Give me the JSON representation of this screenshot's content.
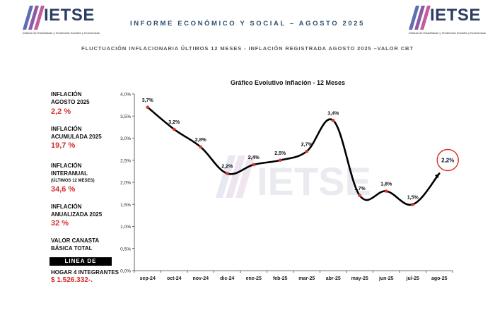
{
  "header": {
    "brand": "IETSE",
    "tagline": "Instituto de Estadísticas y Tendencias Sociales y Económicas",
    "report_title": "INFORME ECONÓMICO Y SOCIAL – AGOSTO 2025",
    "subtitle": "FLUCTUACIÓN INFLACIONARIA ÚLTIMOS 12 MESES - INFLACIÓN REGISTRADA AGOSTO 2025 –VALOR CBT"
  },
  "sidebar": {
    "inflacion_label_1": "INFLACIÓN",
    "inflacion_label_2": "AGOSTO 2025",
    "inflacion_value": "2,2 %",
    "acumulada_label_1": "INFLACIÓN",
    "acumulada_label_2": "ACUMULADA 2025",
    "acumulada_value": "19,7 %",
    "interanual_label_1": "INFLACIÓN",
    "interanual_label_2": "INTERANUAL",
    "interanual_label_3": "(ÚLTIMOS 12 MESES)",
    "interanual_value": "34,6 %",
    "anualizada_label_1": "INFLACIÓN",
    "anualizada_label_2": "ANUALIZADA 2025",
    "anualizada_value": "32 %",
    "canasta_label_1": "VALOR CANASTA",
    "canasta_label_2": "BÁSICA TOTAL",
    "pobreza_label": "LINEA DE POBREZA",
    "hogar_label": "HOGAR 4 INTEGRANTES",
    "hogar_value": "$ 1.526.332-."
  },
  "chart_data": {
    "type": "line",
    "title": "Gráfico Evolutivo Inflación - 12 Meses",
    "categories": [
      "sep-24",
      "oct-24",
      "nov-24",
      "dic-24",
      "ene-25",
      "feb-25",
      "mar-25",
      "abr-25",
      "may-25",
      "jun-25",
      "jul-25",
      "ago-25"
    ],
    "values": [
      3.7,
      3.2,
      2.8,
      2.2,
      2.4,
      2.5,
      2.7,
      3.4,
      1.7,
      1.8,
      1.5,
      2.2
    ],
    "data_labels": [
      "3,7%",
      "3,2%",
      "2,8%",
      "2,2%",
      "2,4%",
      "2,5%",
      "2,7%",
      "3,4%",
      "1,7%",
      "1,8%",
      "1,5%",
      "2,2%"
    ],
    "y_ticks": [
      "0,0%",
      "0,5%",
      "1,0%",
      "1,5%",
      "2,0%",
      "2,5%",
      "3,0%",
      "3,5%",
      "4,0%"
    ],
    "ylim": [
      0,
      4
    ],
    "highlight_last": true,
    "watermark": "IETSE",
    "line_color": "#000000",
    "point_color": "#e03030",
    "highlight_color": "#d42d2d"
  }
}
